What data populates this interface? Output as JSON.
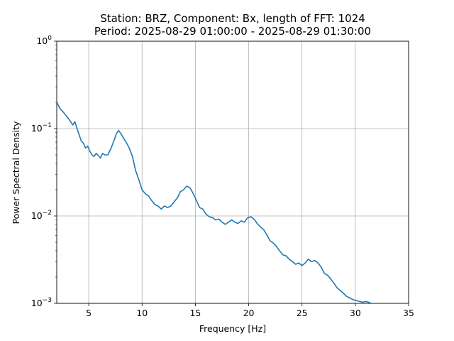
{
  "chart_data": {
    "type": "line",
    "title": "Station: BRZ, Component: Bx, length of FFT: 1024",
    "subtitle": "Period: 2025-08-29 01:00:00 - 2025-08-29 01:30:00",
    "xlabel": "Frequency [Hz]",
    "ylabel": "Power Spectral Density",
    "xlim": [
      2,
      35
    ],
    "ylim": [
      0.001,
      1
    ],
    "yscale": "log",
    "grid": true,
    "x_ticks": [
      5,
      10,
      15,
      20,
      25,
      30,
      35
    ],
    "x_tick_labels": [
      "5",
      "10",
      "15",
      "20",
      "25",
      "30",
      "35"
    ],
    "y_ticks": [
      0.001,
      0.01,
      0.1,
      1
    ],
    "y_tick_labels": [
      {
        "base": "10",
        "exp": "−3"
      },
      {
        "base": "10",
        "exp": "−2"
      },
      {
        "base": "10",
        "exp": "−1"
      },
      {
        "base": "10",
        "exp": "0"
      }
    ],
    "series": [
      {
        "color": "#1f77b4",
        "x": [
          2.0,
          2.3,
          2.6,
          2.9,
          3.2,
          3.5,
          3.7,
          3.9,
          4.1,
          4.3,
          4.5,
          4.7,
          4.9,
          5.1,
          5.3,
          5.5,
          5.7,
          5.9,
          6.1,
          6.3,
          6.5,
          6.8,
          7.1,
          7.4,
          7.6,
          7.8,
          8.0,
          8.2,
          8.5,
          8.8,
          9.1,
          9.4,
          9.7,
          10.0,
          10.3,
          10.6,
          10.9,
          11.2,
          11.5,
          11.8,
          12.1,
          12.4,
          12.7,
          13.0,
          13.3,
          13.6,
          13.9,
          14.2,
          14.5,
          14.8,
          15.1,
          15.4,
          15.7,
          16.0,
          16.3,
          16.6,
          16.9,
          17.2,
          17.5,
          17.8,
          18.1,
          18.4,
          18.7,
          19.0,
          19.3,
          19.6,
          19.9,
          20.2,
          20.5,
          20.8,
          21.1,
          21.4,
          21.7,
          22.0,
          22.3,
          22.6,
          22.9,
          23.2,
          23.5,
          23.8,
          24.1,
          24.4,
          24.7,
          25.0,
          25.3,
          25.6,
          25.9,
          26.2,
          26.5,
          26.8,
          27.1,
          27.4,
          27.7,
          28.0,
          28.3,
          28.6,
          28.9,
          29.2,
          29.5,
          29.8,
          30.1,
          30.4,
          30.7,
          31.0,
          31.3,
          31.6
        ],
        "y": [
          0.2,
          0.17,
          0.155,
          0.14,
          0.125,
          0.11,
          0.12,
          0.1,
          0.085,
          0.072,
          0.068,
          0.06,
          0.063,
          0.055,
          0.05,
          0.048,
          0.052,
          0.049,
          0.046,
          0.052,
          0.05,
          0.05,
          0.06,
          0.075,
          0.088,
          0.095,
          0.088,
          0.08,
          0.07,
          0.06,
          0.048,
          0.033,
          0.026,
          0.02,
          0.018,
          0.017,
          0.015,
          0.0135,
          0.013,
          0.012,
          0.013,
          0.0125,
          0.013,
          0.0145,
          0.016,
          0.019,
          0.02,
          0.022,
          0.021,
          0.018,
          0.015,
          0.0125,
          0.012,
          0.0105,
          0.0098,
          0.0096,
          0.009,
          0.0092,
          0.0085,
          0.008,
          0.0085,
          0.009,
          0.0085,
          0.0082,
          0.0088,
          0.0085,
          0.0095,
          0.0098,
          0.0092,
          0.0082,
          0.0075,
          0.007,
          0.0061,
          0.0052,
          0.0049,
          0.0045,
          0.004,
          0.0036,
          0.0035,
          0.0032,
          0.003,
          0.0028,
          0.0029,
          0.0027,
          0.0029,
          0.0032,
          0.003,
          0.0031,
          0.0029,
          0.0026,
          0.0022,
          0.0021,
          0.0019,
          0.0017,
          0.0015,
          0.0014,
          0.0013,
          0.0012,
          0.00115,
          0.0011,
          0.00108,
          0.00105,
          0.00103,
          0.00105,
          0.00102,
          0.00098
        ]
      }
    ]
  }
}
